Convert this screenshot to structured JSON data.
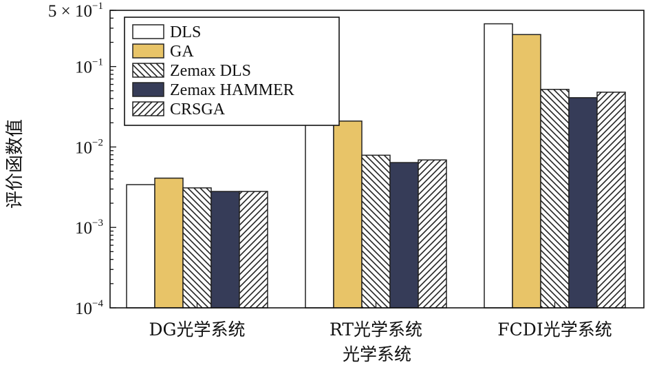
{
  "chart_data": {
    "type": "bar",
    "yscale": "log",
    "ylim": [
      0.0001,
      0.5
    ],
    "yticks": [
      {
        "value": 0.0001,
        "base": "10",
        "exp": "−4"
      },
      {
        "value": 0.001,
        "base": "10",
        "exp": "−3"
      },
      {
        "value": 0.01,
        "base": "10",
        "exp": "−2"
      },
      {
        "value": 0.1,
        "base": "10",
        "exp": "−1"
      },
      {
        "value": 0.5,
        "base": "5 × 10",
        "exp": "−1"
      }
    ],
    "ylabel": "评价函数值",
    "xlabel": "光学系统",
    "categories": [
      "DG光学系统",
      "RT光学系统",
      "FCDI光学系统"
    ],
    "legend_position": "top-left",
    "series": [
      {
        "name": "DLS",
        "style": "white",
        "values": [
          0.0034,
          0.02,
          0.34
        ]
      },
      {
        "name": "GA",
        "style": "gold",
        "values": [
          0.0041,
          0.021,
          0.25
        ]
      },
      {
        "name": "Zemax DLS",
        "style": "hatch-back",
        "values": [
          0.0031,
          0.0079,
          0.052
        ]
      },
      {
        "name": "Zemax HAMMER",
        "style": "navy",
        "values": [
          0.0028,
          0.0064,
          0.041
        ]
      },
      {
        "name": "CRSGA",
        "style": "hatch-fwd",
        "values": [
          0.0028,
          0.0069,
          0.048
        ]
      }
    ],
    "colors": {
      "gold": "#e8c468",
      "navy": "#363c58",
      "white": "#ffffff",
      "stroke": "#222222"
    }
  }
}
